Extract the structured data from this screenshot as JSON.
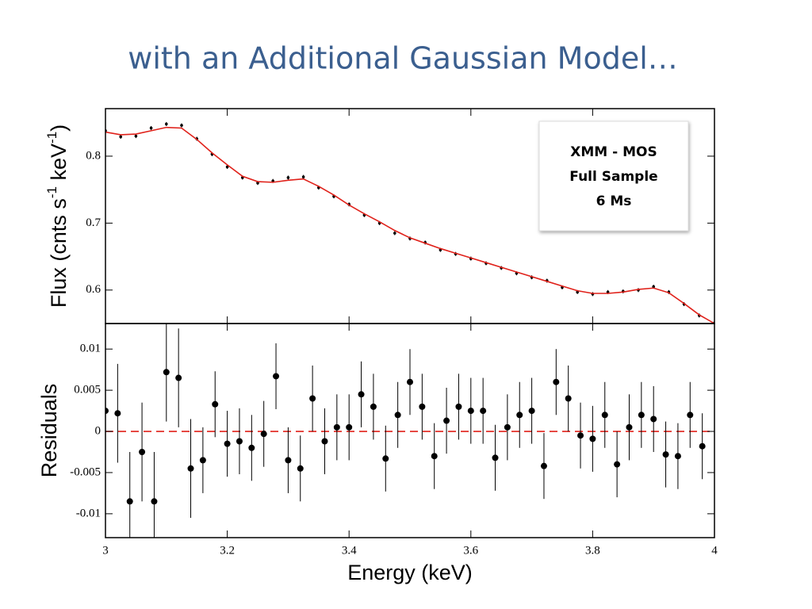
{
  "slide_title": "with an Additional Gaussian Model…",
  "annotations": [
    "XMM - MOS",
    "Full Sample",
    "6 Ms"
  ],
  "chart_data": [
    {
      "type": "scatter",
      "ylabel_parts": [
        "Flux (cnts s",
        "-1",
        "  keV",
        "-1",
        ")"
      ],
      "xlim": [
        3,
        4
      ],
      "ylim": [
        0.55,
        0.871
      ],
      "xticks": [
        3,
        3.2,
        3.4,
        3.6,
        3.8,
        4
      ],
      "yticks": [
        0.6,
        0.7,
        0.8
      ],
      "grid": false,
      "series": [
        {
          "style": "points",
          "color": "#000000",
          "x": [
            3.0,
            3.025,
            3.05,
            3.075,
            3.1,
            3.125,
            3.15,
            3.175,
            3.2,
            3.225,
            3.25,
            3.275,
            3.3,
            3.325,
            3.35,
            3.375,
            3.4,
            3.425,
            3.45,
            3.475,
            3.5,
            3.525,
            3.55,
            3.575,
            3.6,
            3.625,
            3.65,
            3.675,
            3.7,
            3.725,
            3.75,
            3.775,
            3.8,
            3.825,
            3.85,
            3.875,
            3.9,
            3.925,
            3.95,
            3.975,
            4.0
          ],
          "values": [
            0.838,
            0.829,
            0.83,
            0.842,
            0.848,
            0.846,
            0.826,
            0.803,
            0.784,
            0.768,
            0.76,
            0.763,
            0.768,
            0.769,
            0.753,
            0.74,
            0.728,
            0.712,
            0.7,
            0.685,
            0.677,
            0.671,
            0.66,
            0.654,
            0.647,
            0.64,
            0.633,
            0.625,
            0.619,
            0.614,
            0.604,
            0.597,
            0.594,
            0.597,
            0.598,
            0.6,
            0.605,
            0.597,
            0.579,
            0.562,
            0.551
          ],
          "errors": [
            0.003,
            0.003,
            0.003,
            0.003,
            0.003,
            0.003,
            0.003,
            0.003,
            0.003,
            0.003,
            0.003,
            0.003,
            0.003,
            0.003,
            0.003,
            0.003,
            0.003,
            0.003,
            0.003,
            0.003,
            0.003,
            0.003,
            0.003,
            0.003,
            0.003,
            0.003,
            0.003,
            0.003,
            0.003,
            0.003,
            0.003,
            0.003,
            0.003,
            0.003,
            0.003,
            0.003,
            0.003,
            0.003,
            0.003,
            0.003,
            0.003
          ]
        },
        {
          "style": "line",
          "color": "#e0211a",
          "x": [
            3.0,
            3.025,
            3.05,
            3.075,
            3.1,
            3.125,
            3.15,
            3.175,
            3.2,
            3.225,
            3.25,
            3.275,
            3.3,
            3.325,
            3.35,
            3.375,
            3.4,
            3.425,
            3.45,
            3.475,
            3.5,
            3.525,
            3.55,
            3.575,
            3.6,
            3.625,
            3.65,
            3.675,
            3.7,
            3.725,
            3.75,
            3.775,
            3.8,
            3.825,
            3.85,
            3.875,
            3.9,
            3.925,
            3.95,
            3.975,
            4.0
          ],
          "values": [
            0.836,
            0.832,
            0.833,
            0.838,
            0.843,
            0.842,
            0.825,
            0.805,
            0.787,
            0.77,
            0.762,
            0.761,
            0.764,
            0.766,
            0.755,
            0.742,
            0.727,
            0.714,
            0.702,
            0.689,
            0.678,
            0.67,
            0.662,
            0.655,
            0.648,
            0.641,
            0.634,
            0.627,
            0.62,
            0.613,
            0.606,
            0.599,
            0.595,
            0.595,
            0.597,
            0.601,
            0.603,
            0.596,
            0.58,
            0.563,
            0.55
          ]
        }
      ]
    },
    {
      "type": "scatter",
      "ylabel": "Residuals",
      "xlabel": "Energy (keV)",
      "xlim": [
        3,
        4
      ],
      "ylim": [
        -0.0129,
        0.0131
      ],
      "xticks": [
        3,
        3.2,
        3.4,
        3.6,
        3.8,
        4
      ],
      "yticks": [
        -0.01,
        -0.005,
        0,
        0.005,
        0.01
      ],
      "grid": false,
      "reference_line": {
        "value": 0,
        "color": "#e0211a"
      },
      "series": [
        {
          "style": "points",
          "color": "#000000",
          "x": [
            3.0,
            3.02,
            3.04,
            3.06,
            3.08,
            3.1,
            3.12,
            3.14,
            3.16,
            3.18,
            3.2,
            3.22,
            3.24,
            3.26,
            3.28,
            3.3,
            3.32,
            3.34,
            3.36,
            3.38,
            3.4,
            3.42,
            3.44,
            3.46,
            3.48,
            3.5,
            3.52,
            3.54,
            3.56,
            3.58,
            3.6,
            3.62,
            3.64,
            3.66,
            3.68,
            3.7,
            3.72,
            3.74,
            3.76,
            3.78,
            3.8,
            3.82,
            3.84,
            3.86,
            3.88,
            3.9,
            3.92,
            3.94,
            3.96,
            3.98
          ],
          "values": [
            0.0025,
            0.0022,
            -0.0085,
            -0.0025,
            -0.0085,
            0.0072,
            0.0065,
            -0.0045,
            -0.0035,
            0.0033,
            -0.0015,
            -0.0012,
            -0.002,
            -0.0003,
            0.0067,
            -0.0035,
            -0.0045,
            0.004,
            -0.0012,
            0.0005,
            0.0005,
            0.0045,
            0.003,
            -0.0033,
            0.002,
            0.006,
            0.003,
            -0.003,
            0.0013,
            0.003,
            0.0025,
            0.0025,
            -0.0032,
            0.0005,
            0.002,
            0.0025,
            -0.0042,
            0.006,
            0.004,
            -0.0005,
            -0.0009,
            0.002,
            -0.004,
            0.0005,
            0.002,
            0.0015,
            -0.0028,
            -0.003,
            0.002,
            -0.0018
          ],
          "errors": [
            0.006,
            0.006,
            0.006,
            0.006,
            0.006,
            0.006,
            0.006,
            0.006,
            0.004,
            0.004,
            0.004,
            0.004,
            0.004,
            0.004,
            0.004,
            0.004,
            0.004,
            0.004,
            0.004,
            0.004,
            0.004,
            0.004,
            0.004,
            0.004,
            0.004,
            0.004,
            0.004,
            0.004,
            0.004,
            0.004,
            0.004,
            0.004,
            0.004,
            0.004,
            0.004,
            0.004,
            0.004,
            0.004,
            0.004,
            0.004,
            0.004,
            0.004,
            0.004,
            0.004,
            0.004,
            0.004,
            0.004,
            0.004,
            0.004,
            0.004
          ]
        }
      ]
    }
  ]
}
